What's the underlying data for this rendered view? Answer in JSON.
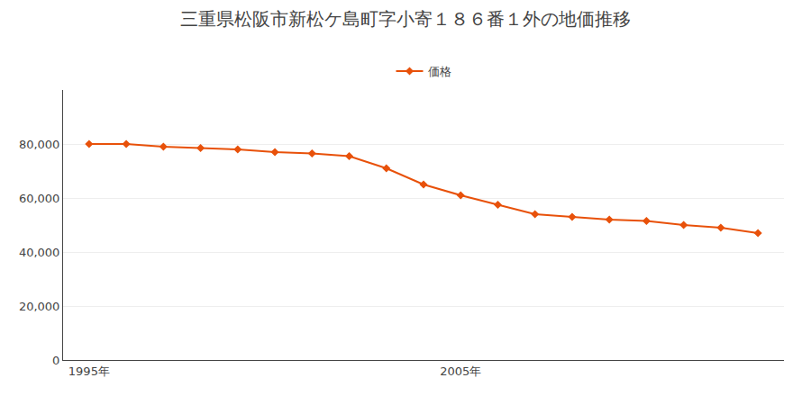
{
  "chart_data": {
    "type": "line",
    "title": "三重県松阪市新松ケ島町字小寄１８６番１外の地価推移",
    "x": [
      1995,
      1996,
      1997,
      1998,
      1999,
      2000,
      2001,
      2002,
      2003,
      2004,
      2005,
      2006,
      2007,
      2008,
      2009,
      2010,
      2011,
      2012,
      2013
    ],
    "series": [
      {
        "name": "価格",
        "color": "#e8510a",
        "marker": "diamond",
        "values": [
          80000,
          80000,
          79000,
          78500,
          78000,
          77000,
          76500,
          75500,
          71000,
          65000,
          61000,
          57500,
          54000,
          53000,
          52000,
          51500,
          50000,
          49000,
          47000
        ]
      }
    ],
    "xlim": [
      1994.3,
      2013.7
    ],
    "xticks": [
      {
        "value": 1995,
        "label": "1995年"
      },
      {
        "value": 2005,
        "label": "2005年"
      }
    ],
    "ylim": [
      0,
      100000
    ],
    "yticks": [
      0,
      {
        "value": 20000,
        "label": "20,000"
      },
      {
        "value": 40000,
        "label": "40,000"
      },
      {
        "value": 60000,
        "label": "60,000"
      },
      {
        "value": 80000,
        "label": "80,000"
      }
    ],
    "grid": "y",
    "legend": "top"
  }
}
